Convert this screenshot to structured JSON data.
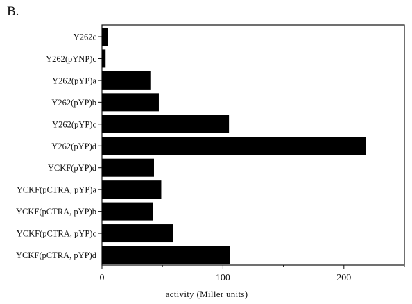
{
  "panel_label": "B.",
  "chart_data": {
    "type": "bar",
    "orientation": "horizontal",
    "categories": [
      "Y262c",
      "Y262(pYNP)c",
      "Y262(pYP)a",
      "Y262(pYP)b",
      "Y262(pYP)c",
      "Y262(pYP)d",
      "YCKF(pYP)d",
      "YCKF(pCTRA, pYP)a",
      "YCKF(pCTRA, pYP)b",
      "YCKF(pCTRA, pYP)c",
      "YCKF(pCTRA, pYP)d"
    ],
    "values": [
      5,
      3,
      40,
      47,
      105,
      218,
      43,
      49,
      42,
      59,
      106
    ],
    "xlabel": "activity  (Miller units)",
    "ylabel": "",
    "title": "",
    "xlim": [
      0,
      250
    ],
    "xticks": [
      0,
      100,
      200
    ],
    "bar_color": "#000000",
    "grid": false
  }
}
